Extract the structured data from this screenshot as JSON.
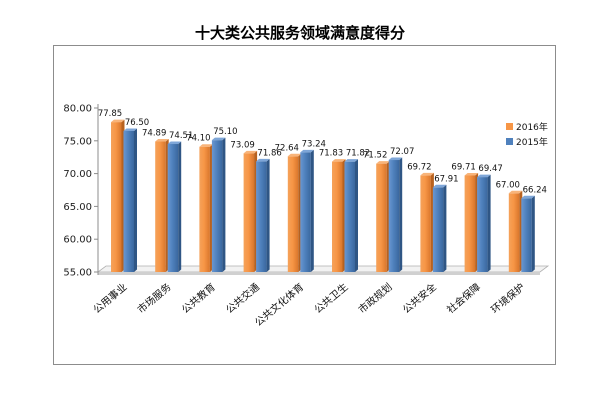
{
  "chart_data": {
    "type": "bar",
    "title": "十大类公共服务领域满意度得分",
    "categories": [
      "公用事业",
      "市场服务",
      "公共教育",
      "公共交通",
      "公共文化体育",
      "公共卫生",
      "市政规划",
      "公共安全",
      "社会保障",
      "环境保护"
    ],
    "series": [
      {
        "name": "2016年",
        "color": "#f79646",
        "values": [
          77.85,
          74.89,
          74.1,
          73.09,
          72.64,
          71.83,
          71.52,
          69.72,
          69.71,
          67.0
        ]
      },
      {
        "name": "2015年",
        "color": "#4f81bd",
        "values": [
          76.5,
          74.51,
          75.1,
          71.86,
          73.24,
          71.82,
          72.07,
          67.91,
          69.47,
          66.24
        ]
      }
    ],
    "data_labels": [
      [
        "77.85",
        "74.89",
        "74.10",
        "73.09",
        "72.64",
        "71.83",
        "71.52",
        "69.72",
        "69.71",
        "67.00"
      ],
      [
        "76.50",
        "74.51",
        "75.10",
        "71.86",
        "73.24",
        "71.82",
        "72.07",
        "67.91",
        "69.47",
        "66.24"
      ]
    ],
    "ylim": [
      55,
      80
    ],
    "yticks": [
      "55.00",
      "60.00",
      "65.00",
      "70.00",
      "75.00",
      "80.00"
    ],
    "ytick_values": [
      55,
      60,
      65,
      70,
      75,
      80
    ],
    "grid": false,
    "legend": "right",
    "style": "3d-bar"
  }
}
